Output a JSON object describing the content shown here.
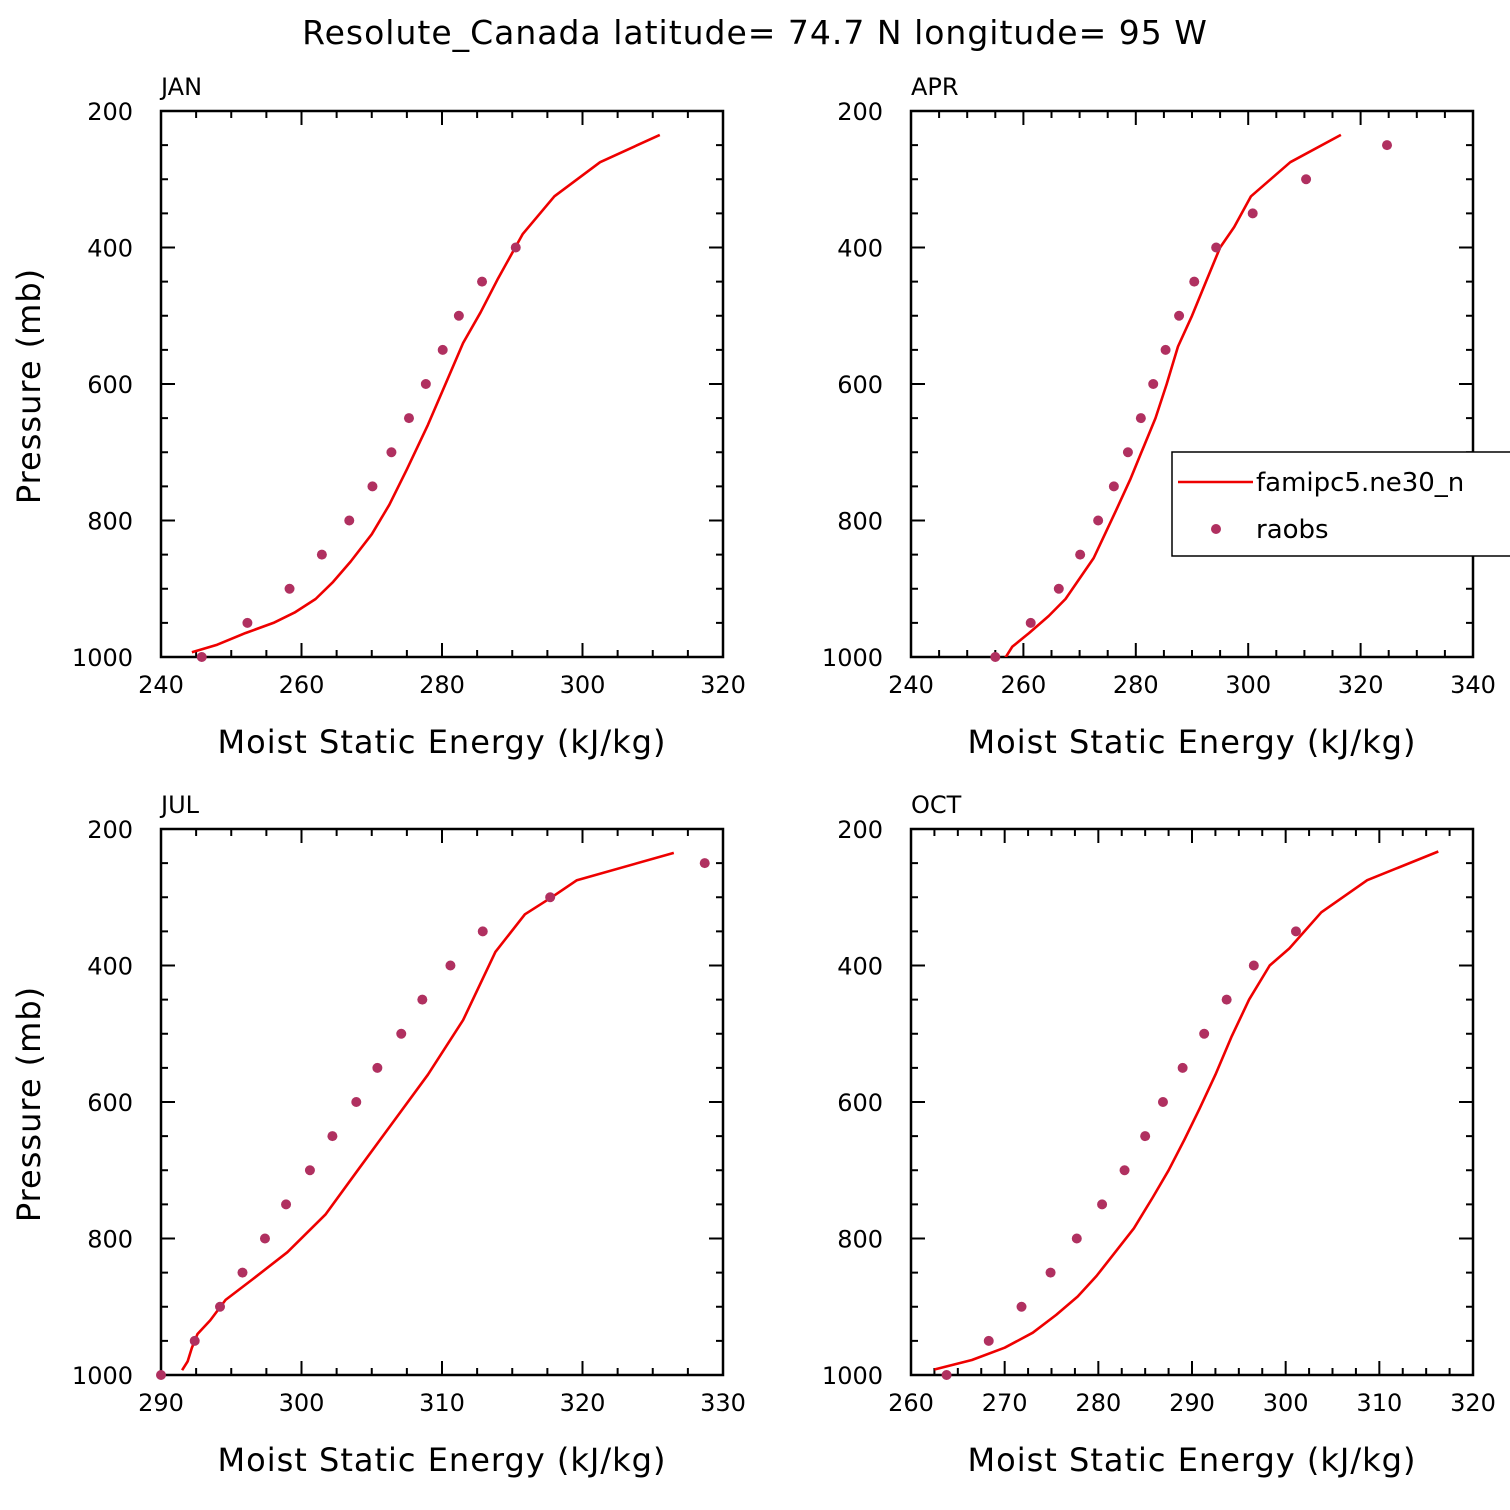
{
  "figure_title": "Resolute_Canada  latitude= 74.7 N longitude= 95 W",
  "legend": {
    "model_label": "famipc5.ne30_n",
    "obs_label": "raobs"
  },
  "colors": {
    "model_line": "#ee0000",
    "obs_marker": "#b03060"
  },
  "chart_data": [
    {
      "type": "line",
      "panel": "JAN",
      "xlabel": "Moist Static Energy (kJ/kg)",
      "ylabel": "Pressure (mb)",
      "xlim": [
        240,
        320
      ],
      "ylim": [
        1000,
        200
      ],
      "xticks": [
        240,
        260,
        280,
        300,
        320
      ],
      "yticks": [
        200,
        400,
        600,
        800,
        1000
      ],
      "series": [
        {
          "name": "famipc5.ne30_n",
          "style": "line",
          "x": [
            244.4,
            248,
            252,
            256,
            259,
            262,
            264.5,
            267,
            270,
            272.5,
            275,
            278,
            280.5,
            283,
            285.5,
            288,
            291.5,
            296,
            302.5,
            311
          ],
          "y": [
            993,
            982,
            965,
            950,
            935,
            915,
            890,
            860,
            820,
            777,
            725,
            660,
            600,
            540,
            495,
            445,
            380,
            325,
            275,
            235
          ]
        },
        {
          "name": "raobs",
          "style": "markers",
          "x": [
            245.8,
            252.3,
            258.3,
            262.9,
            266.8,
            270.1,
            272.8,
            275.3,
            277.7,
            280.1,
            282.4,
            285.7,
            290.5
          ],
          "y": [
            1000,
            950,
            900,
            850,
            800,
            750,
            700,
            650,
            600,
            550,
            500,
            450,
            400
          ]
        }
      ]
    },
    {
      "type": "line",
      "panel": "APR",
      "xlabel": "Moist Static Energy (kJ/kg)",
      "ylabel": "",
      "xlim": [
        240,
        340
      ],
      "ylim": [
        1000,
        200
      ],
      "xticks": [
        240,
        260,
        280,
        300,
        320,
        340
      ],
      "yticks": [
        200,
        400,
        600,
        800,
        1000
      ],
      "series": [
        {
          "name": "famipc5.ne30_n",
          "style": "line",
          "x": [
            256.5,
            258,
            261,
            264.5,
            267.5,
            270,
            272.5,
            274.5,
            276.5,
            279,
            281,
            283.5,
            285.5,
            287.5,
            290,
            292.5,
            295,
            297.5,
            300.5,
            307.5,
            316.5
          ],
          "y": [
            1005,
            985,
            965,
            940,
            915,
            885,
            855,
            820,
            785,
            740,
            700,
            650,
            600,
            545,
            500,
            450,
            400,
            370,
            325,
            275,
            235
          ]
        },
        {
          "name": "raobs",
          "style": "markers",
          "x": [
            255,
            261.3,
            266.3,
            270.1,
            273.3,
            276.1,
            278.6,
            280.9,
            283.1,
            285.3,
            287.7,
            290.4,
            294.3,
            300.8,
            310.3,
            324.7
          ],
          "y": [
            1000,
            950,
            900,
            850,
            800,
            750,
            700,
            650,
            600,
            550,
            500,
            450,
            400,
            350,
            300,
            250
          ]
        }
      ]
    },
    {
      "type": "line",
      "panel": "JUL",
      "xlabel": "Moist Static Energy (kJ/kg)",
      "ylabel": "Pressure (mb)",
      "xlim": [
        290,
        330
      ],
      "ylim": [
        1000,
        200
      ],
      "xticks": [
        290,
        300,
        310,
        320,
        330
      ],
      "yticks": [
        200,
        400,
        600,
        800,
        1000
      ],
      "series": [
        {
          "name": "famipc5.ne30_n",
          "style": "line",
          "x": [
            291.5,
            291.9,
            292.2,
            292.6,
            293.5,
            294.6,
            296.5,
            299,
            301.7,
            304,
            306.5,
            309,
            311.5,
            313.8,
            315.9,
            317.8,
            319.6,
            326.5
          ],
          "y": [
            993,
            980,
            960,
            940,
            920,
            890,
            860,
            820,
            765,
            700,
            630,
            560,
            480,
            380,
            325,
            300,
            275,
            235
          ]
        },
        {
          "name": "raobs",
          "style": "markers",
          "x": [
            290,
            292.4,
            294.2,
            295.8,
            297.4,
            298.9,
            300.6,
            302.2,
            303.9,
            305.4,
            307.1,
            308.6,
            310.6,
            312.9,
            317.7,
            328.7
          ],
          "y": [
            1000,
            950,
            900,
            850,
            800,
            750,
            700,
            650,
            600,
            550,
            500,
            450,
            400,
            350,
            300,
            250
          ]
        }
      ]
    },
    {
      "type": "line",
      "panel": "OCT",
      "xlabel": "Moist Static Energy (kJ/kg)",
      "ylabel": "",
      "xlim": [
        260,
        320
      ],
      "ylim": [
        1000,
        200
      ],
      "xticks": [
        260,
        270,
        280,
        290,
        300,
        310,
        320
      ],
      "yticks": [
        200,
        400,
        600,
        800,
        1000
      ],
      "series": [
        {
          "name": "famipc5.ne30_n",
          "style": "line",
          "x": [
            262.5,
            266.5,
            270,
            273,
            275.5,
            277.8,
            279.8,
            281.8,
            283.8,
            285.8,
            287.5,
            289.2,
            290.8,
            292.5,
            294.2,
            296.1,
            298.3,
            300.4,
            303.8,
            308.7,
            316.3
          ],
          "y": [
            992,
            978,
            960,
            938,
            912,
            885,
            855,
            820,
            785,
            740,
            700,
            655,
            610,
            560,
            505,
            450,
            400,
            375,
            322,
            275,
            233
          ]
        },
        {
          "name": "raobs",
          "style": "markers",
          "x": [
            263.8,
            268.3,
            271.8,
            274.9,
            277.7,
            280.4,
            282.8,
            285,
            286.9,
            289,
            291.3,
            293.7,
            296.6,
            301.1
          ],
          "y": [
            1000,
            950,
            900,
            850,
            800,
            750,
            700,
            650,
            600,
            550,
            500,
            450,
            400,
            350
          ]
        }
      ]
    }
  ]
}
